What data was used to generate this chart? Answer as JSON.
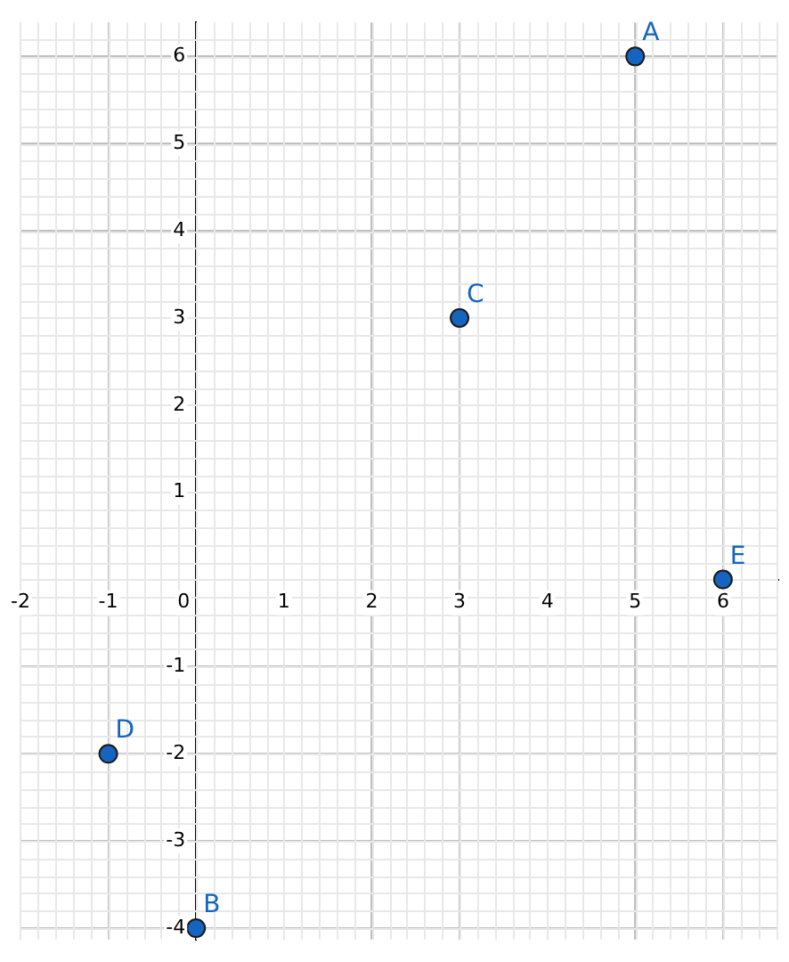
{
  "chart_data": {
    "type": "scatter",
    "x": [
      5,
      0,
      3,
      -1,
      6
    ],
    "values": [
      6,
      -4,
      3,
      -2,
      0
    ],
    "color": "#1565c0",
    "marker": "circle",
    "grid": true,
    "xlim": [
      -2,
      6.63
    ],
    "ylim": [
      -4.13,
      6.39
    ],
    "xticks": [
      -2,
      -1,
      0,
      1,
      2,
      3,
      4,
      5,
      6
    ],
    "yticks": [
      -4,
      -3,
      -2,
      -1,
      {
        "value": 0,
        "label": null
      },
      1,
      2,
      3,
      4,
      5,
      6
    ],
    "annotations": [
      {
        "text": "A",
        "x": 5,
        "y": 6
      },
      {
        "text": "B",
        "x": 0,
        "y": -4
      },
      {
        "text": "C",
        "x": 3,
        "y": 3
      },
      {
        "text": "D",
        "x": -1,
        "y": -2
      },
      {
        "text": "E",
        "x": 6,
        "y": 0
      }
    ]
  }
}
